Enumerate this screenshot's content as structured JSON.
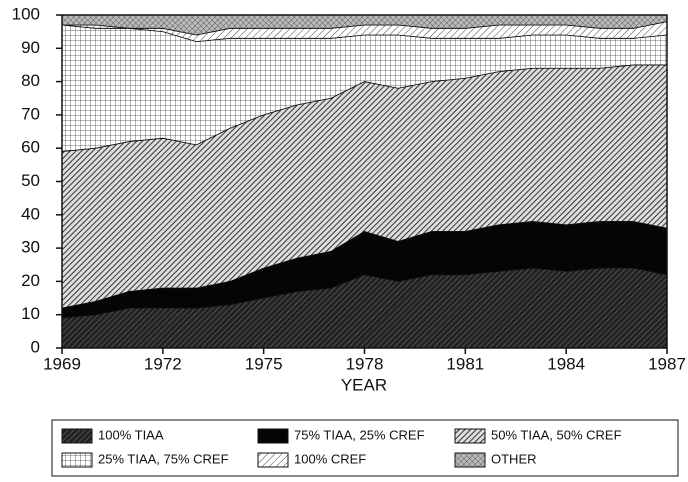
{
  "chart_data": {
    "type": "stacked-area",
    "x_label": "YEAR",
    "x": [
      1969,
      1970,
      1971,
      1972,
      1973,
      1974,
      1975,
      1976,
      1977,
      1978,
      1979,
      1980,
      1981,
      1982,
      1983,
      1984,
      1985,
      1986,
      1987
    ],
    "xlim": [
      1969,
      1987
    ],
    "xticks": [
      1969,
      1972,
      1975,
      1978,
      1981,
      1984,
      1987
    ],
    "ylim": [
      0,
      100
    ],
    "yticks": [
      0,
      10,
      20,
      30,
      40,
      50,
      60,
      70,
      80,
      90,
      100
    ],
    "series": [
      {
        "name": "100% TIAA",
        "values": [
          9,
          10,
          12,
          12,
          12,
          13,
          15,
          17,
          18,
          22,
          20,
          22,
          22,
          23,
          24,
          23,
          24,
          24,
          22
        ]
      },
      {
        "name": "75% TIAA, 25% CREF",
        "values": [
          3,
          4,
          5,
          6,
          6,
          7,
          9,
          10,
          11,
          13,
          12,
          13,
          13,
          14,
          14,
          14,
          14,
          14,
          14
        ]
      },
      {
        "name": "50% TIAA, 50% CREF",
        "values": [
          47,
          46,
          45,
          45,
          43,
          46,
          46,
          46,
          46,
          45,
          46,
          45,
          46,
          46,
          46,
          47,
          46,
          47,
          49
        ]
      },
      {
        "name": "25% TIAA, 75% CREF",
        "values": [
          38,
          36,
          34,
          32,
          31,
          27,
          23,
          20,
          18,
          14,
          16,
          13,
          12,
          10,
          10,
          10,
          9,
          8,
          9
        ]
      },
      {
        "name": "100% CREF",
        "values": [
          0,
          1,
          0,
          1,
          2,
          3,
          3,
          3,
          3,
          3,
          3,
          3,
          3,
          4,
          3,
          3,
          3,
          3,
          4
        ]
      },
      {
        "name": "OTHER",
        "values": [
          3,
          3,
          4,
          4,
          6,
          4,
          4,
          4,
          4,
          3,
          3,
          4,
          4,
          3,
          3,
          3,
          4,
          4,
          2
        ]
      }
    ]
  }
}
